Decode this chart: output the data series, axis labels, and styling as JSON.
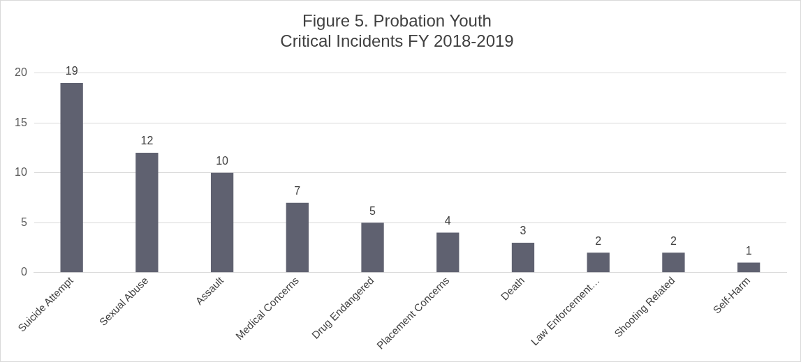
{
  "chart_data": {
    "type": "bar",
    "title": "Figure 5. Probation Youth\nCritical Incidents FY 2018-2019",
    "categories": [
      "Suicide Attempt",
      "Sexual Abuse",
      "Assault",
      "Medical Concerns",
      "Drug Endangered",
      "Placement Concerns",
      "Death",
      "Law Enforcement…",
      "Shooting Related",
      "Self-Harm"
    ],
    "values": [
      19,
      12,
      10,
      7,
      5,
      4,
      3,
      2,
      2,
      1
    ],
    "color": "#5f6170",
    "ylim": [
      0,
      20
    ],
    "yticks": [
      0,
      5,
      10,
      15,
      20
    ],
    "grid": "y",
    "legend": false,
    "data_labels": true
  }
}
